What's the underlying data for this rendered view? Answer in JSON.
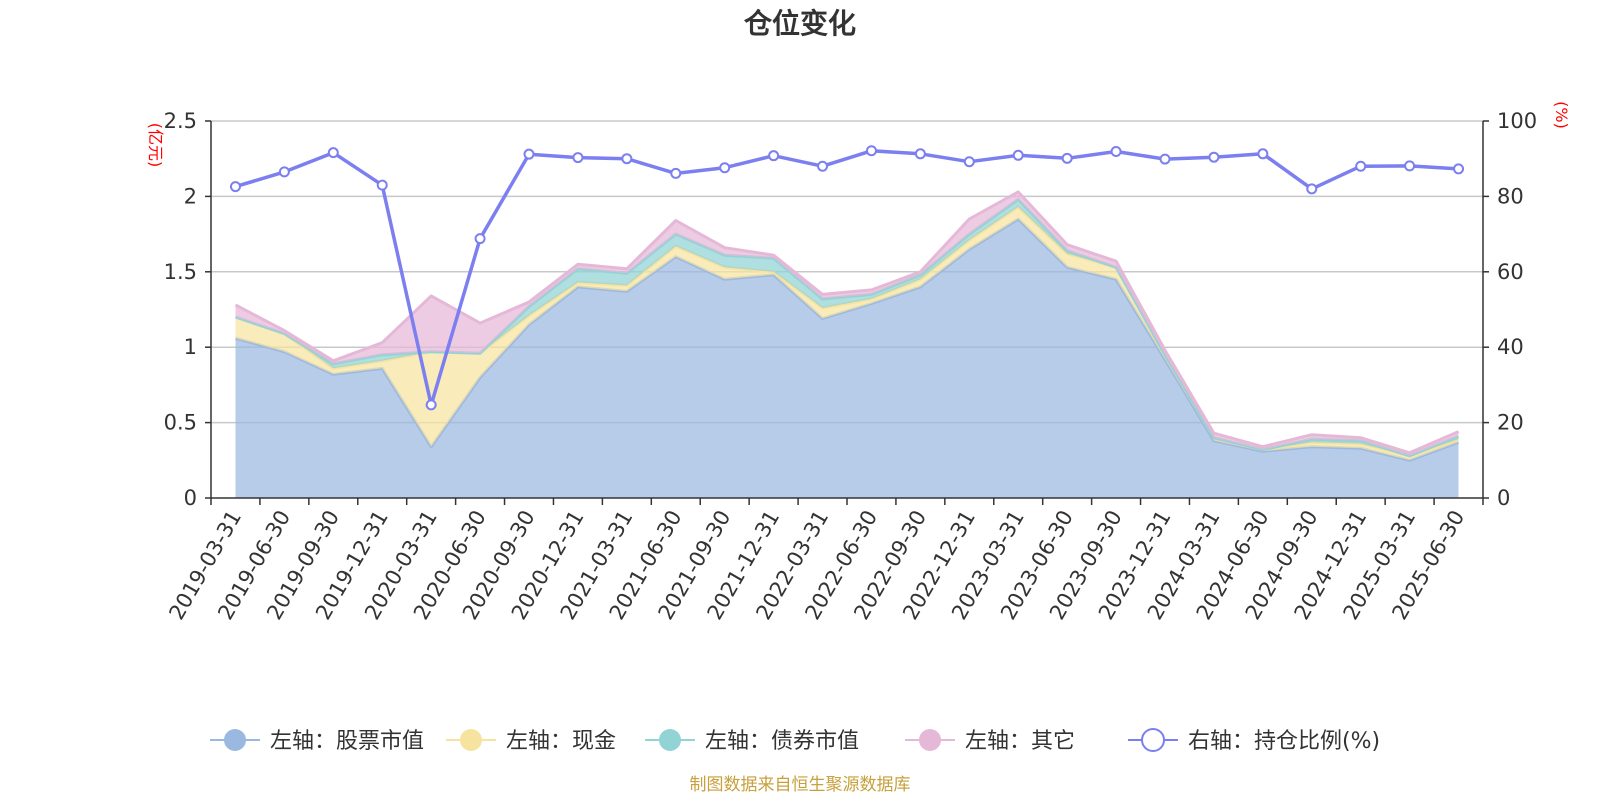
{
  "chart_data": {
    "type": "area",
    "title": "仓位变化",
    "left_axis": {
      "unit": "(亿元)",
      "ylim": [
        0,
        2.5
      ],
      "ticks": [
        "0",
        "0.5",
        "1",
        "1.5",
        "2",
        "2.5"
      ]
    },
    "right_axis": {
      "unit": "(%)",
      "ylim": [
        0,
        100
      ],
      "ticks": [
        "0",
        "20",
        "40",
        "60",
        "80",
        "100"
      ]
    },
    "categories": [
      "2019-03-31",
      "2019-06-30",
      "2019-09-30",
      "2019-12-31",
      "2020-03-31",
      "2020-06-30",
      "2020-09-30",
      "2020-12-31",
      "2021-03-31",
      "2021-06-30",
      "2021-09-30",
      "2021-12-31",
      "2022-03-31",
      "2022-06-30",
      "2022-09-30",
      "2022-12-31",
      "2023-03-31",
      "2023-06-30",
      "2023-09-30",
      "2023-12-31",
      "2024-03-31",
      "2024-06-30",
      "2024-09-30",
      "2024-12-31",
      "2025-03-31",
      "2025-06-30"
    ],
    "series": [
      {
        "name": "左轴：股票市值",
        "axis": "left",
        "color": "#9bb8e0",
        "values": [
          1.06,
          0.97,
          0.82,
          0.86,
          0.34,
          0.8,
          1.15,
          1.4,
          1.37,
          1.6,
          1.45,
          1.48,
          1.19,
          1.29,
          1.4,
          1.65,
          1.85,
          1.53,
          1.45,
          0.92,
          0.38,
          0.31,
          0.34,
          0.33,
          0.25,
          0.37
        ]
      },
      {
        "name": "左轴：现金",
        "axis": "left",
        "color": "#f6e3a0",
        "values": [
          0.14,
          0.12,
          0.04,
          0.05,
          0.63,
          0.16,
          0.06,
          0.03,
          0.04,
          0.07,
          0.08,
          0.02,
          0.07,
          0.03,
          0.05,
          0.06,
          0.08,
          0.09,
          0.08,
          0.03,
          0.02,
          0.01,
          0.03,
          0.03,
          0.03,
          0.02
        ]
      },
      {
        "name": "左轴：债券市值",
        "axis": "left",
        "color": "#92d3d6",
        "values": [
          0.0,
          0.0,
          0.03,
          0.04,
          0.0,
          0.0,
          0.06,
          0.09,
          0.08,
          0.08,
          0.08,
          0.09,
          0.06,
          0.03,
          0.03,
          0.04,
          0.05,
          0.02,
          0.0,
          0.0,
          0.0,
          0.0,
          0.02,
          0.02,
          0.0,
          0.02
        ]
      },
      {
        "name": "左轴：其它",
        "axis": "left",
        "color": "#e6b8d8",
        "values": [
          0.08,
          0.02,
          0.02,
          0.08,
          0.37,
          0.2,
          0.03,
          0.03,
          0.03,
          0.09,
          0.05,
          0.02,
          0.03,
          0.03,
          0.02,
          0.1,
          0.05,
          0.04,
          0.04,
          0.03,
          0.03,
          0.02,
          0.03,
          0.02,
          0.02,
          0.03
        ]
      },
      {
        "name": "右轴：持仓比例(%)",
        "axis": "right",
        "color": "#7b7ff0",
        "values": [
          82.6,
          86.5,
          91.6,
          83.0,
          24.7,
          68.8,
          91.2,
          90.3,
          90.0,
          86.1,
          87.6,
          90.8,
          88.0,
          92.1,
          91.3,
          89.2,
          90.9,
          90.1,
          91.9,
          89.9,
          90.4,
          91.3,
          82.0,
          88.0,
          88.1,
          87.3
        ]
      }
    ],
    "grid": true,
    "legend": "bottom"
  },
  "footer": {
    "source": "制图数据来自恒生聚源数据库"
  }
}
